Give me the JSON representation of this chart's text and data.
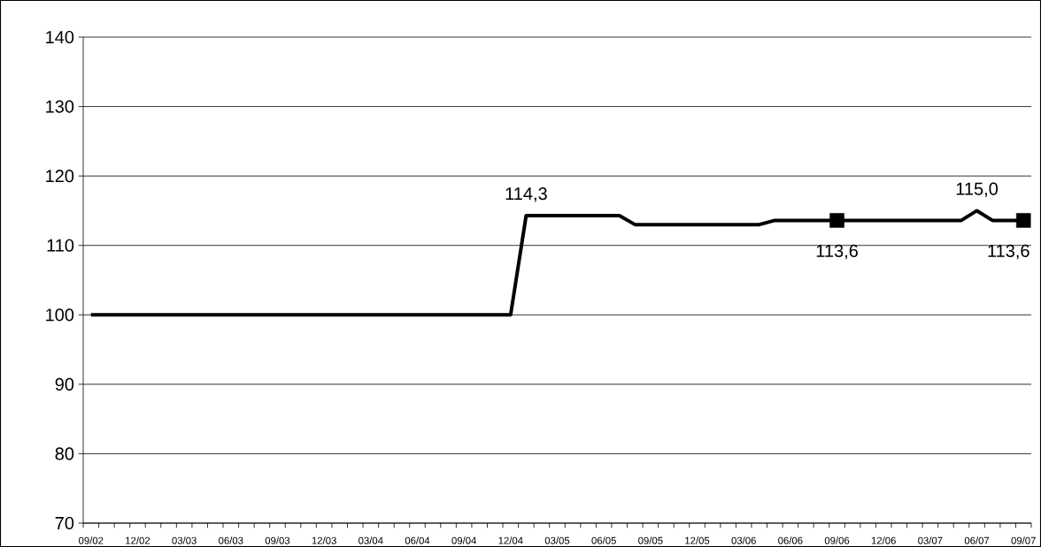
{
  "chart_data": {
    "type": "line",
    "categories": [
      "09/02",
      null,
      null,
      "12/02",
      null,
      null,
      "03/03",
      null,
      null,
      "06/03",
      null,
      null,
      "09/03",
      null,
      null,
      "12/03",
      null,
      null,
      "03/04",
      null,
      null,
      "06/04",
      null,
      null,
      "09/04",
      null,
      null,
      "12/04",
      null,
      null,
      "03/05",
      null,
      null,
      "06/05",
      null,
      null,
      "09/05",
      null,
      null,
      "12/05",
      null,
      null,
      "03/06",
      null,
      null,
      "06/06",
      null,
      null,
      "09/06",
      null,
      null,
      "12/06",
      null,
      null,
      "03/07",
      null,
      null,
      "06/07",
      null,
      null,
      "09/07"
    ],
    "series": [
      {
        "color": "#000000",
        "line_style": "solid",
        "values": [
          100,
          100,
          100,
          100,
          100,
          100,
          100,
          100,
          100,
          100,
          100,
          100,
          100,
          100,
          100,
          100,
          100,
          100,
          100,
          100,
          100,
          100,
          100,
          100,
          100,
          100,
          100,
          100,
          114.3,
          114.3,
          114.3,
          114.3,
          114.3,
          114.3,
          114.3,
          113.0,
          113.0,
          113.0,
          113.0,
          113.0,
          113.0,
          113.0,
          113.0,
          113.0,
          113.6,
          113.6,
          113.6,
          113.6,
          113.6,
          113.6,
          113.6,
          113.6,
          113.6,
          113.6,
          113.6,
          113.6,
          113.6,
          115.0,
          113.6,
          113.6,
          113.6
        ],
        "value_labels": [
          null,
          null,
          null,
          null,
          null,
          null,
          null,
          null,
          null,
          null,
          null,
          null,
          null,
          null,
          null,
          null,
          null,
          null,
          null,
          null,
          null,
          null,
          null,
          null,
          null,
          null,
          null,
          null,
          "114,3",
          null,
          null,
          null,
          null,
          null,
          null,
          null,
          null,
          null,
          null,
          null,
          null,
          null,
          null,
          null,
          null,
          null,
          null,
          null,
          "113,6",
          null,
          null,
          null,
          null,
          null,
          null,
          null,
          null,
          "115,0",
          null,
          null,
          "113,6"
        ]
      },
      {
        "type": "scatter",
        "color": "#000000",
        "marker": "square",
        "values": [
          null,
          null,
          null,
          null,
          null,
          null,
          null,
          null,
          null,
          null,
          null,
          null,
          null,
          null,
          null,
          null,
          null,
          null,
          null,
          null,
          null,
          null,
          null,
          null,
          null,
          null,
          null,
          null,
          null,
          null,
          null,
          null,
          null,
          null,
          null,
          null,
          null,
          null,
          null,
          null,
          null,
          null,
          null,
          null,
          null,
          null,
          null,
          null,
          113.6,
          null,
          null,
          null,
          null,
          null,
          null,
          null,
          null,
          null,
          null,
          null,
          113.6
        ]
      }
    ],
    "ylim": [
      70,
      140
    ],
    "yticks": [
      70,
      80,
      90,
      100,
      110,
      120,
      130,
      140
    ],
    "grid": "y"
  }
}
